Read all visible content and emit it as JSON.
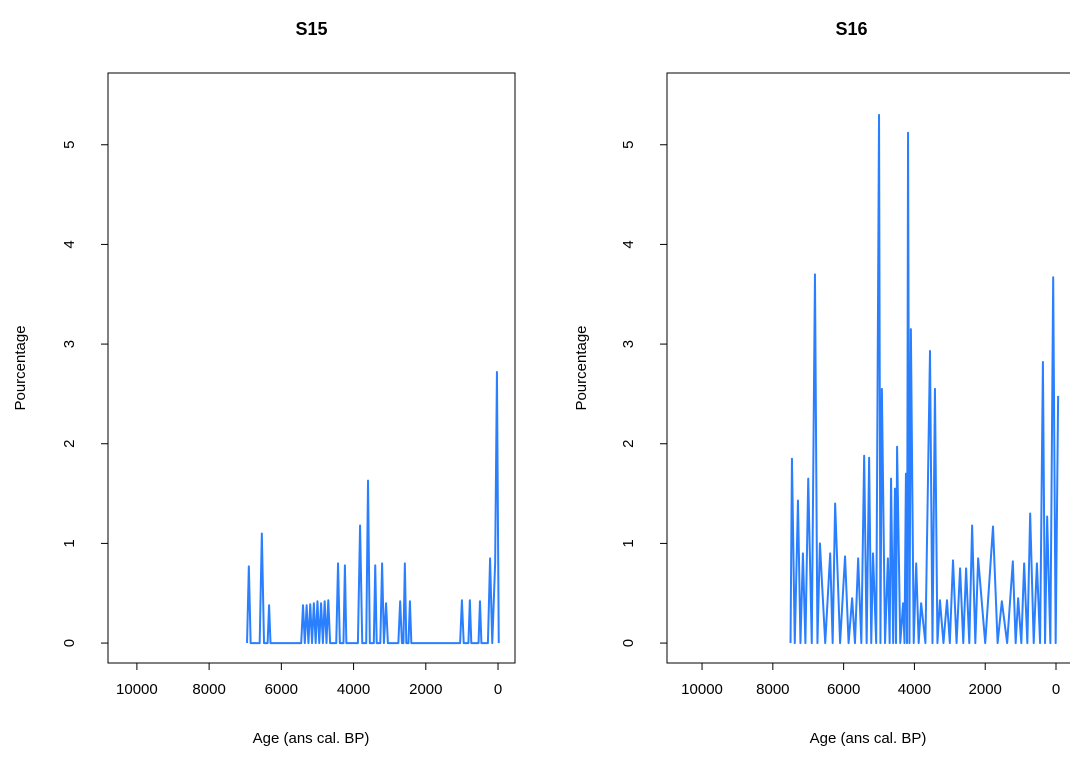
{
  "chart_data": [
    {
      "type": "line",
      "title": "S15",
      "x_label": "Age (ans cal. BP)",
      "y_label": "Pourcentage",
      "xlim": [
        10800,
        -470
      ],
      "ylim": [
        -0.2,
        5.72
      ],
      "xticks": [
        10000,
        8000,
        6000,
        4000,
        2000,
        0
      ],
      "yticks": [
        0,
        1,
        2,
        3,
        4,
        5
      ],
      "series": [
        {
          "name": "S15",
          "color": "#2a7fff",
          "x": [
            6950,
            6900,
            6850,
            6600,
            6540,
            6480,
            6380,
            6340,
            6300,
            6100,
            5900,
            5700,
            5450,
            5400,
            5350,
            5300,
            5250,
            5200,
            5150,
            5100,
            5050,
            5000,
            4950,
            4900,
            4850,
            4800,
            4750,
            4700,
            4650,
            4600,
            4480,
            4430,
            4380,
            4280,
            4240,
            4200,
            3880,
            3820,
            3760,
            3650,
            3600,
            3550,
            3440,
            3400,
            3360,
            3260,
            3210,
            3160,
            3100,
            3050,
            2760,
            2710,
            2660,
            2620,
            2580,
            2540,
            2480,
            2440,
            2400,
            2200,
            2000,
            1800,
            1600,
            1400,
            1200,
            1050,
            1000,
            950,
            820,
            780,
            740,
            540,
            500,
            460,
            280,
            220,
            160,
            80,
            30,
            -20
          ],
          "values": [
            0,
            0.77,
            0,
            0,
            1.1,
            0,
            0,
            0.38,
            0,
            0,
            0,
            0,
            0,
            0.38,
            0,
            0.38,
            0,
            0.39,
            0,
            0.4,
            0,
            0.42,
            0,
            0.4,
            0,
            0.42,
            0,
            0.43,
            0,
            0,
            0,
            0.8,
            0,
            0,
            0.78,
            0,
            0,
            1.18,
            0,
            0,
            1.63,
            0,
            0,
            0.78,
            0,
            0,
            0.8,
            0,
            0.4,
            0,
            0,
            0.42,
            0,
            0,
            0.8,
            0,
            0,
            0.42,
            0,
            0,
            0,
            0,
            0,
            0,
            0,
            0,
            0.43,
            0,
            0,
            0.43,
            0,
            0,
            0.42,
            0,
            0,
            0.85,
            0,
            0.8,
            2.72,
            0
          ]
        }
      ]
    },
    {
      "type": "line",
      "title": "S16",
      "x_label": "Age (ans cal. BP)",
      "y_label": "Pourcentage",
      "xlim": [
        10990,
        -480
      ],
      "ylim": [
        -0.2,
        5.72
      ],
      "xticks": [
        10000,
        8000,
        6000,
        4000,
        2000,
        0
      ],
      "yticks": [
        0,
        1,
        2,
        3,
        4,
        5
      ],
      "series": [
        {
          "name": "S16",
          "color": "#2a7fff",
          "x": [
            7500,
            7460,
            7380,
            7290,
            7220,
            7150,
            7080,
            7000,
            6900,
            6810,
            6740,
            6670,
            6520,
            6380,
            6310,
            6240,
            6100,
            5960,
            5860,
            5760,
            5680,
            5590,
            5500,
            5420,
            5350,
            5280,
            5220,
            5170,
            5080,
            5000,
            4960,
            4920,
            4830,
            4750,
            4700,
            4660,
            4600,
            4550,
            4520,
            4490,
            4400,
            4320,
            4280,
            4240,
            4210,
            4180,
            4140,
            4100,
            4020,
            3950,
            3880,
            3810,
            3690,
            3560,
            3490,
            3420,
            3350,
            3280,
            3180,
            3080,
            3000,
            2910,
            2810,
            2710,
            2620,
            2540,
            2450,
            2370,
            2280,
            2200,
            2000,
            1780,
            1650,
            1530,
            1380,
            1220,
            1140,
            1070,
            980,
            900,
            810,
            730,
            630,
            540,
            450,
            370,
            310,
            250,
            160,
            80,
            10,
            -60
          ],
          "values": [
            0,
            1.85,
            0,
            1.43,
            0,
            0.9,
            0,
            1.65,
            0,
            3.7,
            0,
            1.0,
            0,
            0.9,
            0,
            1.4,
            0,
            0.87,
            0,
            0.45,
            0,
            0.85,
            0,
            1.88,
            0,
            1.86,
            0,
            0.9,
            0,
            5.3,
            0,
            2.55,
            0,
            0.85,
            0,
            1.65,
            0,
            1.55,
            0,
            1.97,
            0,
            0.4,
            0,
            1.7,
            0,
            5.12,
            0,
            3.15,
            0,
            0.8,
            0,
            0.4,
            0,
            2.93,
            0,
            2.55,
            0,
            0.43,
            0,
            0.43,
            0,
            0.83,
            0,
            0.75,
            0,
            0.75,
            0,
            1.18,
            0,
            0.85,
            0,
            1.17,
            0,
            0.42,
            0,
            0.82,
            0,
            0.45,
            0,
            0.8,
            0,
            1.3,
            0,
            0.8,
            0,
            2.82,
            0,
            1.27,
            0,
            3.67,
            0,
            2.48
          ]
        }
      ]
    }
  ]
}
